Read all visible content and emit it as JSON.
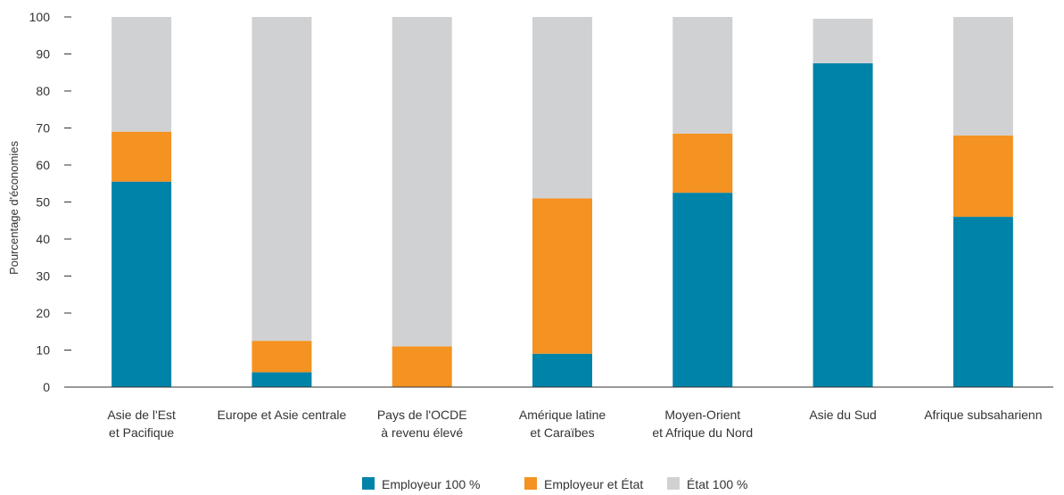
{
  "chart_data": {
    "type": "bar",
    "stacked": true,
    "title": "",
    "xlabel": "",
    "ylabel": "Pourcentage d'économies",
    "ylim": [
      0,
      100
    ],
    "yticks": [
      0,
      10,
      20,
      30,
      40,
      50,
      60,
      70,
      80,
      90,
      100
    ],
    "grid": false,
    "legend_position": "bottom",
    "categories": [
      [
        "Asie de l'Est",
        "et Pacifique"
      ],
      [
        "Europe et Asie centrale"
      ],
      [
        "Pays de l'OCDE",
        "à revenu élevé"
      ],
      [
        "Amérique latine",
        "et Caraïbes"
      ],
      [
        "Moyen-Orient",
        "et Afrique du Nord"
      ],
      [
        "Asie du Sud"
      ],
      [
        "Afrique subsaharienn"
      ]
    ],
    "series": [
      {
        "name": "Employeur 100 %",
        "color": "#0083a9",
        "values": [
          55.5,
          4,
          0,
          9,
          52.5,
          87.5,
          46
        ]
      },
      {
        "name": "Employeur et État",
        "color": "#f49222",
        "values": [
          13.5,
          8.5,
          11,
          42,
          16,
          0,
          22
        ]
      },
      {
        "name": "État 100 %",
        "color": "#d0d1d3",
        "values": [
          31,
          87.5,
          89,
          49,
          31.5,
          12,
          32
        ]
      }
    ]
  }
}
